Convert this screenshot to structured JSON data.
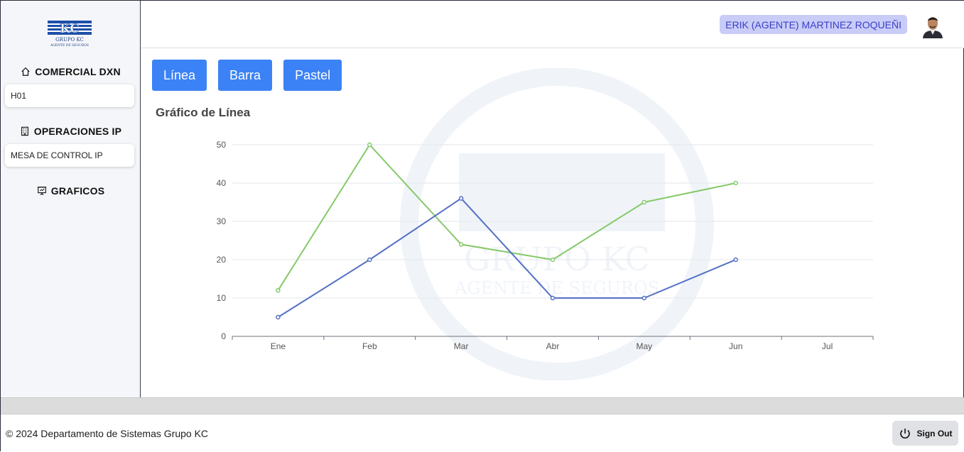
{
  "sidebar": {
    "logo_text": "GRUPO KC",
    "logo_subtext": "AGENTE DE SEGUROS",
    "sections": [
      {
        "label": "COMERCIAL DXN",
        "icon": "home-icon",
        "items": [
          {
            "label": "H01"
          }
        ]
      },
      {
        "label": "OPERACIONES IP",
        "icon": "building-icon",
        "items": [
          {
            "label": "MESA DE CONTROL IP"
          }
        ]
      },
      {
        "label": "GRAFICOS",
        "icon": "presentation-icon",
        "items": []
      }
    ]
  },
  "topbar": {
    "user_name": "ERIK (AGENTE) MARTINEZ ROQUEÑI"
  },
  "tabs": [
    {
      "label": "Línea"
    },
    {
      "label": "Barra"
    },
    {
      "label": "Pastel"
    }
  ],
  "chart_heading": "Gráfico de Línea",
  "chart_data": {
    "type": "line",
    "categories": [
      "Ene",
      "Feb",
      "Mar",
      "Abr",
      "May",
      "Jun",
      "Jul"
    ],
    "series": [
      {
        "values": [
          12,
          50,
          24,
          20,
          35,
          40,
          null
        ],
        "color": "#86c96a"
      },
      {
        "values": [
          5,
          20,
          36,
          10,
          10,
          20,
          null
        ],
        "color": "#5470c6"
      }
    ],
    "ylim": [
      0,
      50
    ],
    "yticks": [
      0,
      10,
      20,
      30,
      40,
      50
    ],
    "grid": true
  },
  "footer": {
    "copyright": "© 2024 Departamento de Sistemas Grupo KC",
    "signout_label": "Sign Out"
  }
}
